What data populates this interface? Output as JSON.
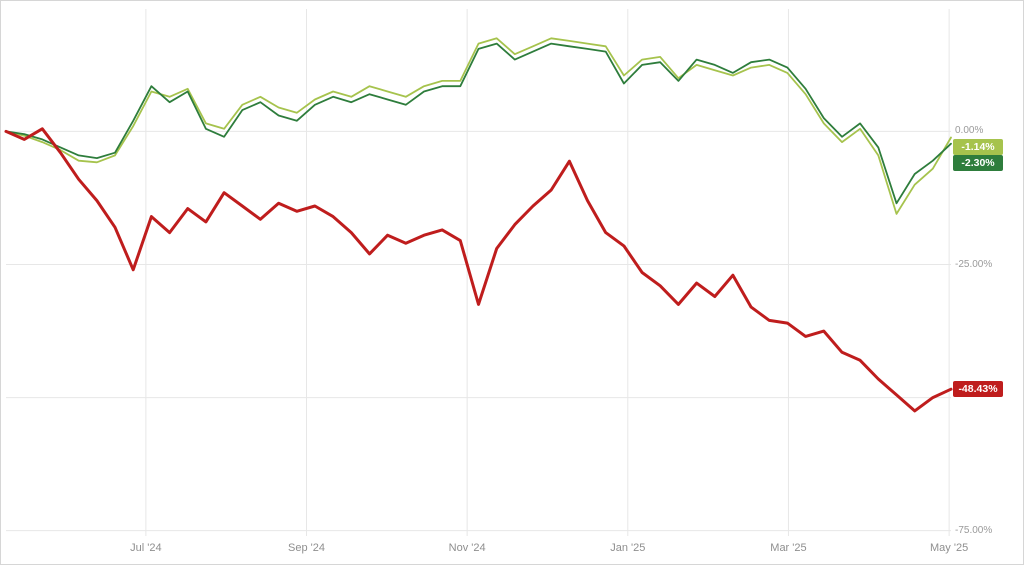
{
  "chart_data": {
    "type": "line",
    "title": "",
    "xlabel": "",
    "ylabel": "",
    "grid": true,
    "legend": "none",
    "ylim": [
      -76,
      23
    ],
    "x_ticks": [
      {
        "label": "Jul '24",
        "pos": 0.148
      },
      {
        "label": "Sep '24",
        "pos": 0.318
      },
      {
        "label": "Nov '24",
        "pos": 0.488
      },
      {
        "label": "Jan '25",
        "pos": 0.658
      },
      {
        "label": "Mar '25",
        "pos": 0.828
      },
      {
        "label": "May '25",
        "pos": 0.998
      }
    ],
    "y_ticks": [
      {
        "label": "0.00%",
        "value": 0
      },
      {
        "label": "-25.00%",
        "value": -25
      },
      {
        "label": "",
        "value": -50
      },
      {
        "label": "-75.00%",
        "value": -75
      }
    ],
    "series": [
      {
        "name": "light-green-line",
        "color": "#a6c34d",
        "stroke_width": 1.8,
        "end_label": "-1.14%",
        "end_value": -1.14,
        "values": [
          0,
          -0.8,
          -2,
          -3.5,
          -5.5,
          -5.8,
          -4.5,
          1,
          7.5,
          6.5,
          8,
          1.5,
          0.5,
          5,
          6.5,
          4.5,
          3.5,
          6,
          7.5,
          6.5,
          8.5,
          7.5,
          6.5,
          8.5,
          9.5,
          9.5,
          16.5,
          17.5,
          14.5,
          16,
          17.5,
          17,
          16.5,
          16,
          10.5,
          13.5,
          14,
          10,
          12.5,
          11.5,
          10.5,
          12,
          12.5,
          11,
          7,
          1.5,
          -2,
          0.5,
          -4.5,
          -15.5,
          -10,
          -7,
          -1.14
        ]
      },
      {
        "name": "dark-green-line",
        "color": "#2e7d3c",
        "stroke_width": 1.8,
        "end_label": "-2.30%",
        "end_value": -2.3,
        "values": [
          0,
          -0.5,
          -1.5,
          -3,
          -4.5,
          -5,
          -4,
          2,
          8.5,
          5.5,
          7.5,
          0.5,
          -1,
          4,
          5.5,
          3,
          2,
          5,
          6.5,
          5.5,
          7,
          6,
          5,
          7.5,
          8.5,
          8.5,
          15.5,
          16.5,
          13.5,
          15,
          16.5,
          16,
          15.5,
          15,
          9,
          12.5,
          13,
          9.5,
          13.5,
          12.5,
          11,
          13,
          13.5,
          12,
          8,
          2.5,
          -1,
          1.5,
          -3,
          -13.5,
          -8,
          -5.5,
          -2.3
        ]
      },
      {
        "name": "red-line",
        "color": "#bf1d1d",
        "stroke_width": 3,
        "end_label": "-48.43%",
        "end_value": -48.43,
        "values": [
          0,
          -1.5,
          0.5,
          -4,
          -9,
          -13,
          -18,
          -26,
          -16,
          -19,
          -14.5,
          -17,
          -11.5,
          -14,
          -16.5,
          -13.5,
          -15,
          -14,
          -16,
          -19,
          -23,
          -19.5,
          -21,
          -19.5,
          -18.5,
          -20.5,
          -32.5,
          -22,
          -17.5,
          -14,
          -11,
          -5.6,
          -13,
          -19,
          -21.5,
          -26.5,
          -29,
          -32.5,
          -28.5,
          -31,
          -27,
          -33,
          -35.5,
          -36,
          -38.5,
          -37.5,
          -41.5,
          -43,
          -46.5,
          -49.5,
          -52.5,
          -50,
          -48.43
        ]
      }
    ]
  },
  "colors": {
    "grid": "#e7e7e7",
    "axis_text": "#8f8f8f",
    "background": "#ffffff"
  }
}
